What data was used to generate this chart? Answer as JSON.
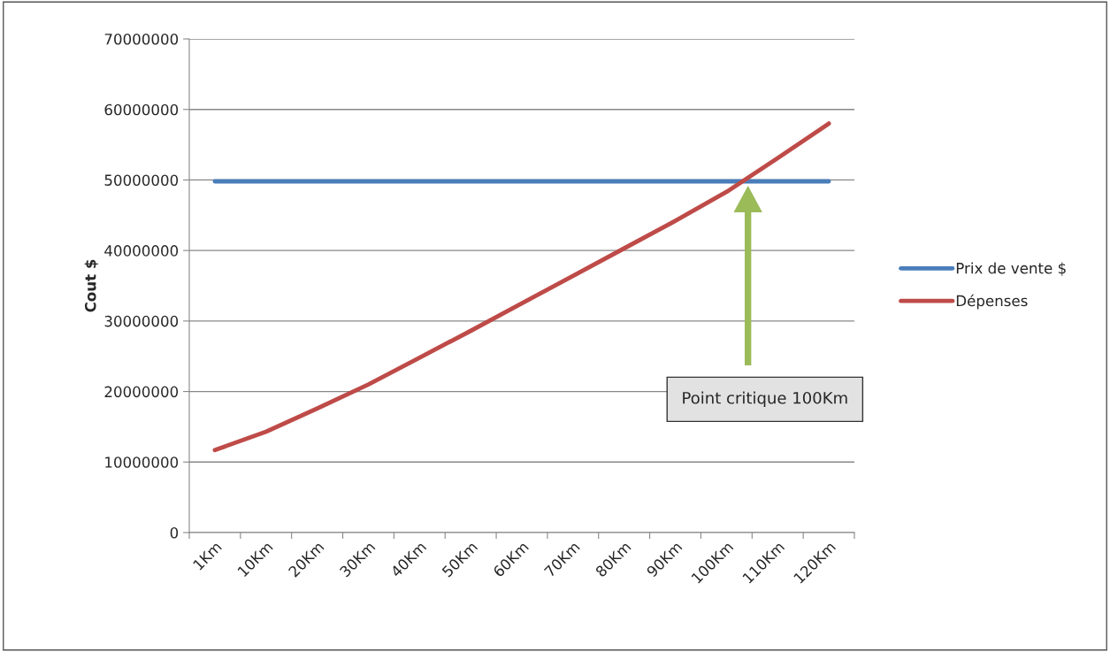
{
  "chart_data": {
    "type": "line",
    "ylabel": "Cout $",
    "categories": [
      "1Km",
      "10Km",
      "20Km",
      "30Km",
      "40Km",
      "50Km",
      "60Km",
      "70Km",
      "80Km",
      "90Km",
      "100Km",
      "110Km",
      "120Km"
    ],
    "series": [
      {
        "name": "Prix de vente $",
        "color": "#4a7ebb",
        "values": [
          49800000,
          49800000,
          49800000,
          49800000,
          49800000,
          49800000,
          49800000,
          49800000,
          49800000,
          49800000,
          49800000,
          49800000,
          49800000
        ]
      },
      {
        "name": "Dépenses",
        "color": "#be4b48",
        "values": [
          11700000,
          14300000,
          17600000,
          21000000,
          24800000,
          28600000,
          32500000,
          36400000,
          40300000,
          44200000,
          48300000,
          53100000,
          58000000
        ]
      }
    ],
    "ylim": [
      0,
      70000000
    ],
    "yticks": [
      0,
      10000000,
      20000000,
      30000000,
      40000000,
      50000000,
      60000000,
      70000000
    ],
    "grid": "y",
    "legend": "right",
    "marker": "none",
    "line_style": "solid",
    "annotations": [
      "Point critique 100Km"
    ]
  }
}
